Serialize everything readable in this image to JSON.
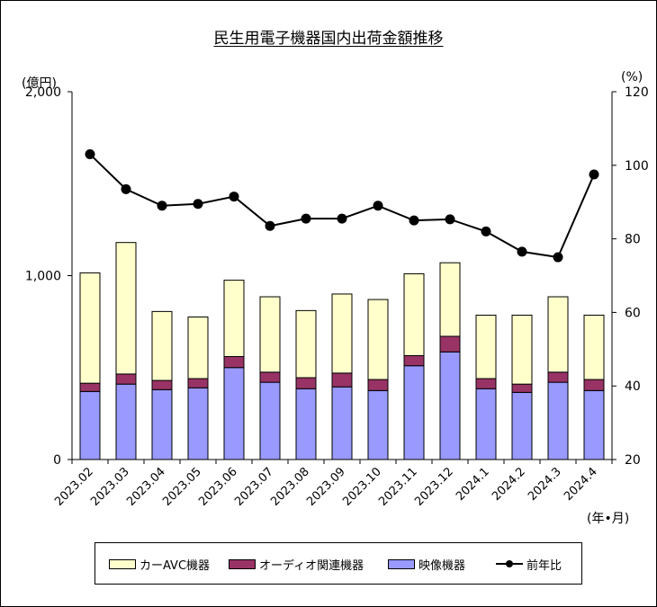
{
  "chart_data": {
    "type": "bar",
    "title": "民生用電子機器国内出荷金額推移",
    "ylabel": "(億円)",
    "y2label": "(%)",
    "xlabel": "(年•月)",
    "ylim": [
      0,
      2000
    ],
    "y2lim": [
      20,
      120
    ],
    "yticks": [
      "0",
      "1,000",
      "2,000"
    ],
    "y2ticks": [
      "20",
      "40",
      "60",
      "80",
      "100",
      "120"
    ],
    "categories": [
      "2023.02",
      "2023.03",
      "2023.04",
      "2023.05",
      "2023.06",
      "2023.07",
      "2023.08",
      "2023.09",
      "2023.10",
      "2023.11",
      "2023.12",
      "2024.1",
      "2024.2",
      "2024.3",
      "2024.4"
    ],
    "series": [
      {
        "name": "映像機器",
        "kind": "bar",
        "color": "#9999ff",
        "values": [
          370,
          410,
          380,
          390,
          500,
          420,
          385,
          395,
          375,
          510,
          585,
          385,
          365,
          420,
          375
        ]
      },
      {
        "name": "オーディオ関連機器",
        "kind": "bar",
        "color": "#993366",
        "values": [
          45,
          55,
          50,
          50,
          60,
          55,
          60,
          75,
          60,
          55,
          85,
          55,
          45,
          55,
          60
        ]
      },
      {
        "name": "カーAVC機器",
        "kind": "bar",
        "color": "#ffffcc",
        "values": [
          600,
          715,
          375,
          335,
          415,
          410,
          365,
          430,
          435,
          445,
          400,
          345,
          375,
          410,
          350
        ]
      },
      {
        "name": "前年比",
        "kind": "line",
        "axis": "right",
        "color": "#000000",
        "values": [
          103,
          93.5,
          89,
          89.5,
          91.5,
          83.5,
          85.5,
          85.5,
          89,
          85,
          85.3,
          82,
          76.5,
          75,
          97.5
        ]
      }
    ],
    "legend_order": [
      "カーAVC機器",
      "オーディオ関連機器",
      "映像機器",
      "前年比"
    ],
    "legend_position": "bottom",
    "grid": false
  }
}
